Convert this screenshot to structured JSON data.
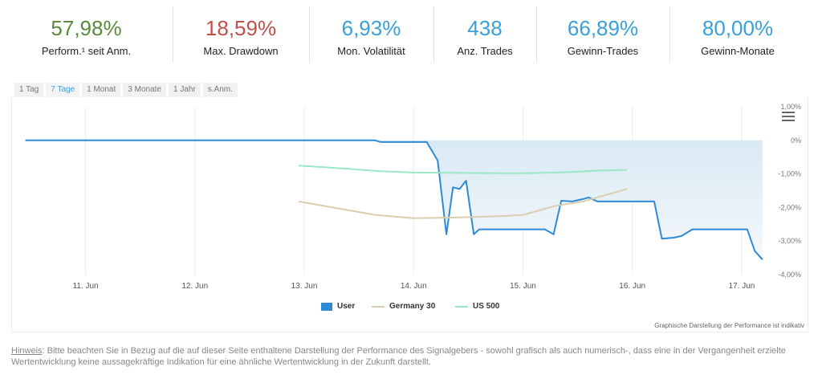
{
  "stats": [
    {
      "value": "57,98%",
      "label": "Perform.¹ seit Anm.",
      "color": "#5a8a3c"
    },
    {
      "value": "18,59%",
      "label": "Max. Drawdown",
      "color": "#c0504d"
    },
    {
      "value": "6,93%",
      "label": "Mon. Volatilität",
      "color": "#3aa0d8"
    },
    {
      "value": "438",
      "label": "Anz. Trades",
      "color": "#3aa0d8"
    },
    {
      "value": "66,89%",
      "label": "Gewinn-Trades",
      "color": "#3aa0d8"
    },
    {
      "value": "80,00%",
      "label": "Gewinn-Monate",
      "color": "#3aa0d8"
    }
  ],
  "tabs": [
    "1 Tag",
    "7 Tage",
    "1 Monat",
    "3 Monate",
    "1 Jahr",
    "s.Anm."
  ],
  "active_tab": "7 Tage",
  "chart_data": {
    "type": "line",
    "x_ticks": [
      "11. Jun",
      "12. Jun",
      "13. Jun",
      "14. Jun",
      "15. Jun",
      "16. Jun",
      "17. Jun"
    ],
    "y_ticks": [
      "1,00%",
      "0%",
      "-1,00%",
      "-2,00%",
      "-3,00%",
      "-4,00%"
    ],
    "ylim": [
      -4.0,
      1.0
    ],
    "xlim": [
      10.35,
      17.25
    ],
    "grid": "vertical",
    "legend_position": "bottom-center",
    "series": [
      {
        "name": "User",
        "color": "#2d8ad6",
        "style": "area-from-14-jun",
        "points": [
          [
            10.45,
            0.0
          ],
          [
            13.65,
            0.0
          ],
          [
            13.7,
            -0.05
          ],
          [
            14.12,
            -0.05
          ],
          [
            14.22,
            -0.6
          ],
          [
            14.3,
            -2.8
          ],
          [
            14.36,
            -1.4
          ],
          [
            14.42,
            -1.45
          ],
          [
            14.48,
            -1.2
          ],
          [
            14.55,
            -2.8
          ],
          [
            14.6,
            -2.65
          ],
          [
            15.2,
            -2.65
          ],
          [
            15.28,
            -2.8
          ],
          [
            15.35,
            -1.8
          ],
          [
            15.45,
            -1.82
          ],
          [
            15.55,
            -1.75
          ],
          [
            15.6,
            -1.7
          ],
          [
            15.68,
            -1.82
          ],
          [
            16.2,
            -1.82
          ],
          [
            16.27,
            -2.93
          ],
          [
            16.38,
            -2.9
          ],
          [
            16.45,
            -2.85
          ],
          [
            16.55,
            -2.65
          ],
          [
            17.05,
            -2.65
          ],
          [
            17.12,
            -3.3
          ],
          [
            17.19,
            -3.55
          ]
        ]
      },
      {
        "name": "Germany 30",
        "color": "#d9ceb0",
        "points": [
          [
            12.95,
            -1.82
          ],
          [
            13.35,
            -2.05
          ],
          [
            13.65,
            -2.22
          ],
          [
            14.0,
            -2.32
          ],
          [
            14.4,
            -2.3
          ],
          [
            14.85,
            -2.25
          ],
          [
            15.0,
            -2.22
          ],
          [
            15.3,
            -1.95
          ],
          [
            15.55,
            -1.82
          ],
          [
            15.95,
            -1.45
          ]
        ]
      },
      {
        "name": "US 500",
        "color": "#9ce7c4",
        "points": [
          [
            12.95,
            -0.75
          ],
          [
            13.4,
            -0.85
          ],
          [
            13.7,
            -0.92
          ],
          [
            14.0,
            -0.96
          ],
          [
            14.4,
            -0.97
          ],
          [
            14.8,
            -0.98
          ],
          [
            15.0,
            -0.98
          ],
          [
            15.4,
            -0.95
          ],
          [
            15.7,
            -0.9
          ],
          [
            15.95,
            -0.88
          ]
        ]
      }
    ]
  },
  "credit": "Graphische Darstellung der Performance ist indikativ",
  "disclaimer": {
    "hint": "Hinweis",
    "text": ": Bitte beachten Sie in Bezug auf die auf dieser Seite enthaltene Darstellung der Performance des Signalgebers - sowohl grafisch als auch numerisch-, dass eine in der Vergangenheit erzielte Wertentwicklung keine aussagekräftige Indikation für eine ähnliche Wertentwicklung in der Zukunft darstellt."
  }
}
